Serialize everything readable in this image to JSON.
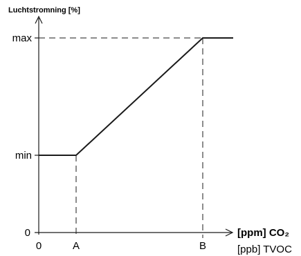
{
  "chart_data": {
    "type": "line",
    "ylabel": "Luchtstromning [%]",
    "xlabel": [
      "[ppm] CO₂",
      "[ppb] TVOC"
    ],
    "x_ticks": [
      "0",
      "A",
      "B"
    ],
    "y_ticks": [
      "0",
      "min",
      "max"
    ],
    "series": [
      {
        "x": [
          "0",
          "A",
          "B",
          ""
        ],
        "y": [
          "min",
          "min",
          "max",
          "max"
        ]
      }
    ],
    "grid": false,
    "line_color": "#1a1a1a"
  }
}
